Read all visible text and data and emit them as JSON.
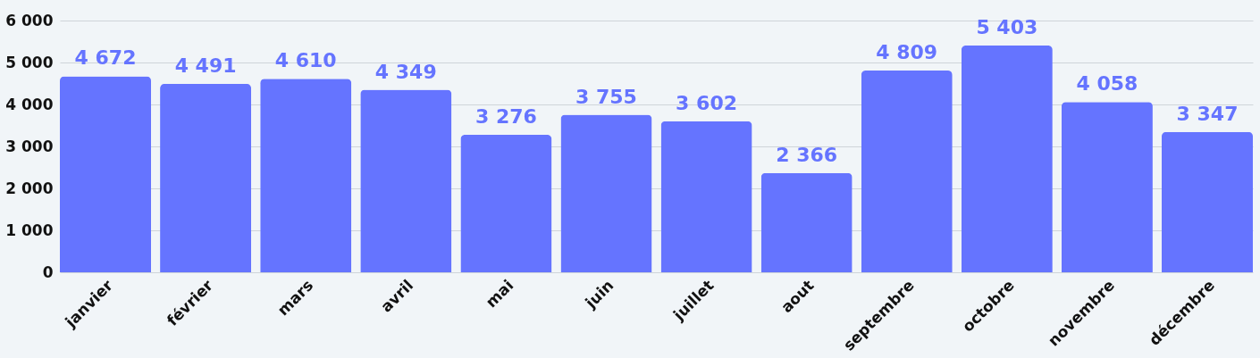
{
  "chart_data": {
    "type": "bar",
    "categories": [
      "janvier",
      "février",
      "mars",
      "avril",
      "mai",
      "juin",
      "juillet",
      "aout",
      "septembre",
      "octobre",
      "novembre",
      "décembre"
    ],
    "values": [
      4672,
      4491,
      4610,
      4349,
      3276,
      3755,
      3602,
      2366,
      4809,
      5403,
      4058,
      3347
    ],
    "value_labels": [
      "4 672",
      "4 491",
      "4 610",
      "4 349",
      "3 276",
      "3 755",
      "3 602",
      "2 366",
      "4 809",
      "5 403",
      "4 058",
      "3 347"
    ],
    "color": "#6574ff",
    "ylim": [
      0,
      6000
    ],
    "yticks": [
      0,
      {
        "value": 1000,
        "label": "1 000"
      },
      {
        "value": 2000,
        "label": "2 000"
      },
      {
        "value": 3000,
        "label": "3 000"
      },
      {
        "value": 4000,
        "label": "4 000"
      },
      {
        "value": 5000,
        "label": "5 000"
      },
      {
        "value": 6000,
        "label": "6 000"
      }
    ],
    "grid": "y"
  }
}
